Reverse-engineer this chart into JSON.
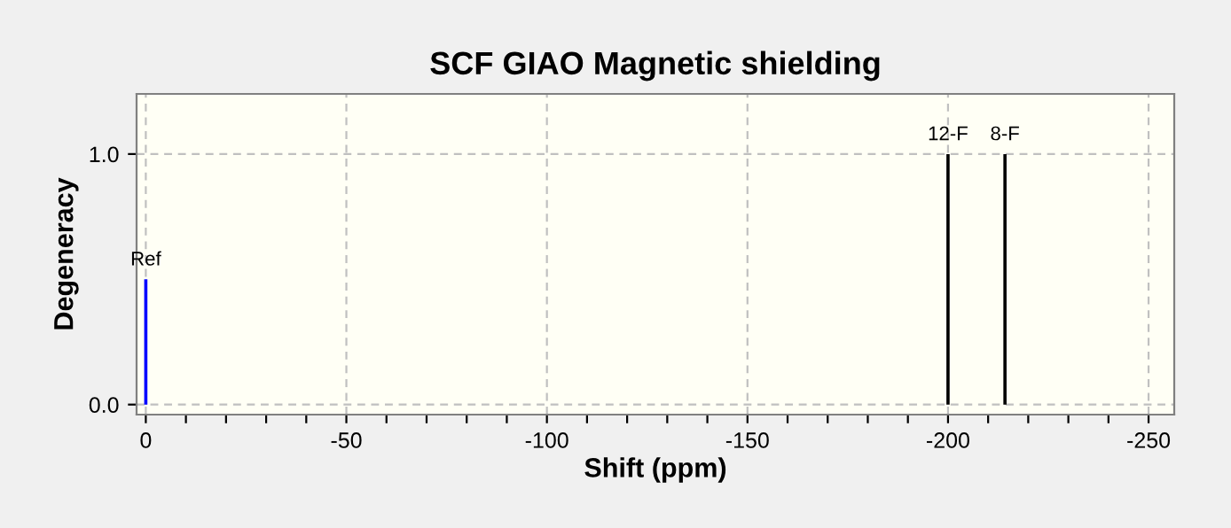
{
  "chart_data": {
    "type": "bar",
    "title": "SCF GIAO Magnetic shielding",
    "xlabel": "Shift (ppm)",
    "ylabel": "Degeneracy",
    "series": [
      {
        "color": "#0000ff",
        "x": [
          0
        ],
        "values": [
          0.5
        ]
      },
      {
        "color": "#000000",
        "x": [
          -200,
          -214.2
        ],
        "values": [
          1.0,
          1.0
        ]
      }
    ],
    "annotations": [
      {
        "text": "Ref",
        "x": 0,
        "y": 0.5
      },
      {
        "text": "12-F",
        "x": -200,
        "y": 1.0
      },
      {
        "text": "8-F",
        "x": -214.2,
        "y": 1.0
      }
    ],
    "xlim": [
      2.3,
      -256.4
    ],
    "ylim": [
      -0.04,
      1.24
    ],
    "xticks": [
      0,
      {
        "value": -10,
        "label": null
      },
      {
        "value": -20,
        "label": null
      },
      {
        "value": -30,
        "label": null
      },
      {
        "value": -40,
        "label": null
      },
      -50,
      {
        "value": -60,
        "label": null
      },
      {
        "value": -70,
        "label": null
      },
      {
        "value": -80,
        "label": null
      },
      {
        "value": -90,
        "label": null
      },
      -100,
      {
        "value": -110,
        "label": null
      },
      {
        "value": -120,
        "label": null
      },
      {
        "value": -130,
        "label": null
      },
      {
        "value": -140,
        "label": null
      },
      -150,
      {
        "value": -160,
        "label": null
      },
      {
        "value": -170,
        "label": null
      },
      {
        "value": -180,
        "label": null
      },
      {
        "value": -190,
        "label": null
      },
      -200,
      {
        "value": -210,
        "label": null
      },
      {
        "value": -220,
        "label": null
      },
      {
        "value": -230,
        "label": null
      },
      {
        "value": -240,
        "label": null
      },
      -250
    ],
    "yticks": [
      {
        "value": 0.0,
        "label": "0.0"
      },
      {
        "value": 1.0,
        "label": "1.0"
      }
    ],
    "grid": true
  }
}
